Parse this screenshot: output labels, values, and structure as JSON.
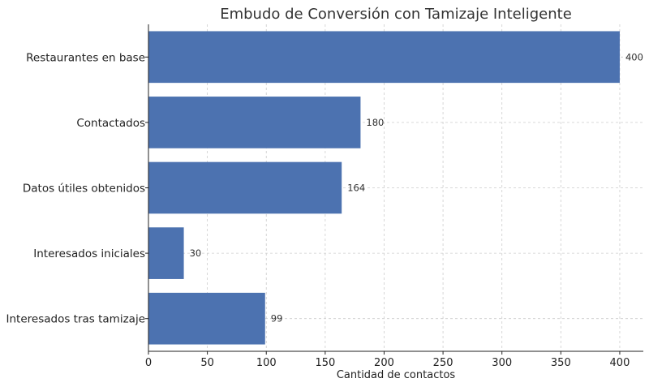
{
  "chart_data": {
    "type": "bar",
    "orientation": "horizontal",
    "title": "Embudo de Conversión con Tamizaje Inteligente",
    "xlabel": "Cantidad de contactos",
    "ylabel": "",
    "categories": [
      "Restaurantes en base",
      "Contactados",
      "Datos útiles obtenidos",
      "Interesados iniciales",
      "Interesados tras tamizaje"
    ],
    "values": [
      400,
      180,
      164,
      30,
      99
    ],
    "data_labels": [
      "400",
      "180",
      "164",
      "30",
      "99"
    ],
    "xlim": [
      0,
      420
    ],
    "xticks": [
      0,
      50,
      100,
      150,
      200,
      250,
      300,
      350,
      400
    ],
    "xtick_labels": [
      "0",
      "50",
      "100",
      "150",
      "200",
      "250",
      "300",
      "350",
      "400"
    ],
    "grid": true,
    "bar_color": "#4c72b0"
  }
}
